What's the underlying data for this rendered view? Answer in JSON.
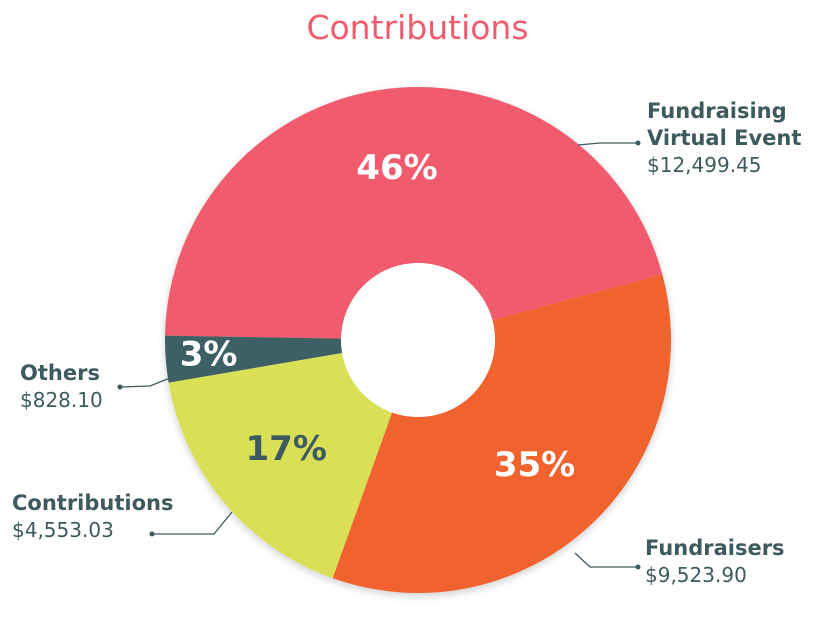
{
  "chart_data": {
    "type": "pie",
    "title": "Contributions",
    "categories": [
      "Fundraising Virtual Event",
      "Fundraisers",
      "Contributions",
      "Others"
    ],
    "values": [
      46,
      35,
      17,
      3
    ],
    "value_labels": [
      "46%",
      "35%",
      "17%",
      "3%"
    ],
    "amounts": [
      "$12,499.45",
      "$9,523.90",
      "$4,553.03",
      "$828.10"
    ],
    "colors": [
      "#f05c6e",
      "#f0622f",
      "#d9e056",
      "#3e6165"
    ],
    "label_colors": [
      "#ffffff",
      "#ffffff",
      "#3d5a5e",
      "#ffffff"
    ]
  }
}
